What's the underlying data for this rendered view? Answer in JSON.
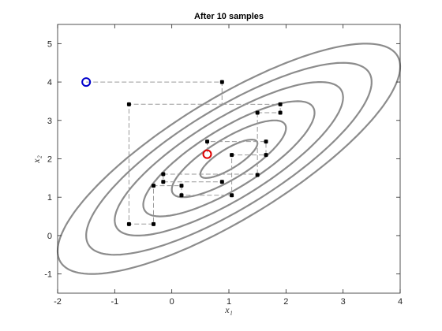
{
  "chart_data": {
    "type": "scatter",
    "title": "After 10 samples",
    "xlabel": "x₁",
    "ylabel": "x₂",
    "xlim": [
      -2,
      4
    ],
    "ylim": [
      -1.5,
      5.5
    ],
    "xticks": [
      -2,
      -1,
      0,
      1,
      2,
      3,
      4
    ],
    "yticks": [
      -1,
      0,
      1,
      2,
      3,
      4,
      5
    ],
    "xtick_labels": [
      "-2",
      "-1",
      "0",
      "1",
      "2",
      "3",
      "4"
    ],
    "ytick_labels": [
      "-1",
      "0",
      "1",
      "2",
      "3",
      "4",
      "5"
    ],
    "grid": false,
    "contours": {
      "center": [
        1.0,
        2.0
      ],
      "covariance": [
        [
          1.0,
          0.8
        ],
        [
          0.8,
          1.0
        ]
      ],
      "levels": [
        0.5,
        1.0,
        1.5,
        2.0,
        2.5,
        3.0
      ],
      "color": "#8c8c8c"
    },
    "start_point": {
      "x": -1.5,
      "y": 4.0,
      "color": "#0000cc"
    },
    "mean_point": {
      "x": 0.62,
      "y": 2.12,
      "color": "#dd0000"
    },
    "samples": {
      "color": "#000000",
      "points": [
        {
          "x": 0.88,
          "y": 4.0
        },
        {
          "x": -0.75,
          "y": 3.42
        },
        {
          "x": -0.75,
          "y": 0.3
        },
        {
          "x": -0.32,
          "y": 0.3
        },
        {
          "x": -0.32,
          "y": 1.3
        },
        {
          "x": -0.15,
          "y": 1.6
        },
        {
          "x": -0.15,
          "y": 1.4
        },
        {
          "x": 0.88,
          "y": 1.4
        },
        {
          "x": 0.17,
          "y": 1.3
        },
        {
          "x": 0.17,
          "y": 1.05
        },
        {
          "x": 1.05,
          "y": 1.05
        },
        {
          "x": 1.05,
          "y": 2.1
        },
        {
          "x": 1.65,
          "y": 2.1
        },
        {
          "x": 1.65,
          "y": 2.45
        },
        {
          "x": 0.62,
          "y": 2.45
        },
        {
          "x": 1.5,
          "y": 1.58
        },
        {
          "x": 1.5,
          "y": 3.2
        },
        {
          "x": 1.9,
          "y": 3.2
        },
        {
          "x": 1.9,
          "y": 3.42
        }
      ]
    },
    "path": {
      "color": "#9a9a9a",
      "points": [
        {
          "x": -1.5,
          "y": 4.0
        },
        {
          "x": 0.88,
          "y": 4.0
        },
        {
          "x": 0.88,
          "y": 3.42
        },
        {
          "x": -0.75,
          "y": 3.42
        },
        {
          "x": -0.75,
          "y": 0.3
        },
        {
          "x": -0.32,
          "y": 0.3
        },
        {
          "x": -0.32,
          "y": 1.3
        },
        {
          "x": 0.17,
          "y": 1.3
        },
        {
          "x": 0.17,
          "y": 1.05
        },
        {
          "x": 1.05,
          "y": 1.05
        },
        {
          "x": 1.05,
          "y": 2.1
        },
        {
          "x": 1.65,
          "y": 2.1
        },
        {
          "x": 1.65,
          "y": 2.45
        },
        {
          "x": 0.62,
          "y": 2.45
        },
        {
          "x": 0.62,
          "y": 2.12
        }
      ],
      "extra_segments": [
        [
          {
            "x": -0.15,
            "y": 1.6
          },
          {
            "x": 1.5,
            "y": 1.6
          }
        ],
        [
          {
            "x": -0.15,
            "y": 1.6
          },
          {
            "x": -0.15,
            "y": 1.4
          }
        ],
        [
          {
            "x": -0.15,
            "y": 1.4
          },
          {
            "x": 0.88,
            "y": 1.4
          }
        ],
        [
          {
            "x": 1.5,
            "y": 1.6
          },
          {
            "x": 1.5,
            "y": 3.2
          }
        ],
        [
          {
            "x": 1.5,
            "y": 3.2
          },
          {
            "x": 1.9,
            "y": 3.2
          }
        ],
        [
          {
            "x": 1.9,
            "y": 3.2
          },
          {
            "x": 1.9,
            "y": 3.42
          }
        ],
        [
          {
            "x": 0.88,
            "y": 3.42
          },
          {
            "x": 1.9,
            "y": 3.42
          }
        ]
      ]
    }
  }
}
